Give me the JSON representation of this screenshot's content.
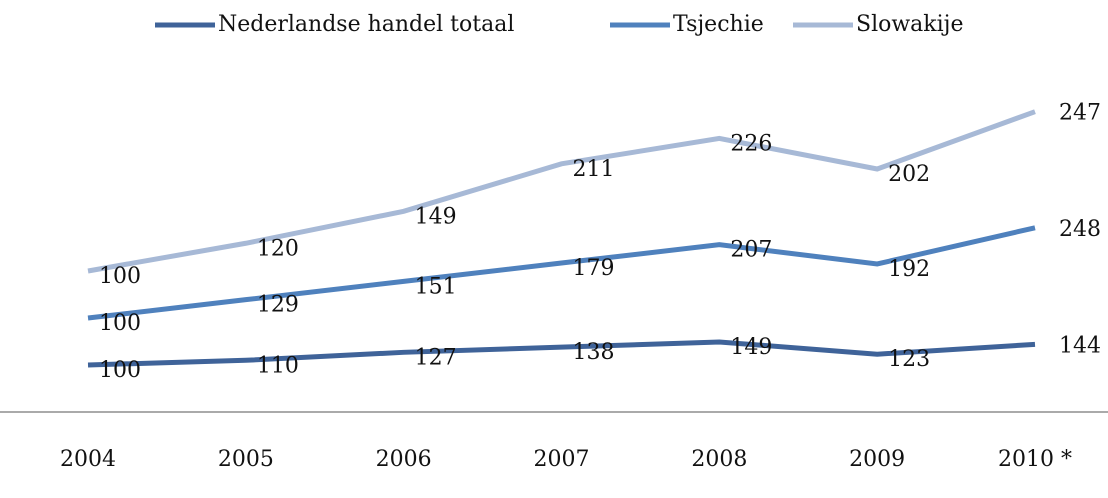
{
  "chart_data": {
    "type": "line",
    "stacked": true,
    "categories": [
      "2004",
      "2005",
      "2006",
      "2007",
      "2008",
      "2009",
      "2010 *"
    ],
    "series": [
      {
        "name": "Nederlandse handel totaal",
        "color": "#3f6399",
        "values": [
          100,
          110,
          127,
          138,
          149,
          123,
          144
        ]
      },
      {
        "name": "Tsjechie",
        "color": "#4f81bd",
        "values": [
          100,
          129,
          151,
          179,
          207,
          192,
          248
        ]
      },
      {
        "name": "Slowakije",
        "color": "#a7b9d6",
        "values": [
          100,
          120,
          149,
          211,
          226,
          202,
          247
        ]
      }
    ],
    "ylim": [
      0,
      700
    ],
    "legend": "top",
    "grid": false
  }
}
